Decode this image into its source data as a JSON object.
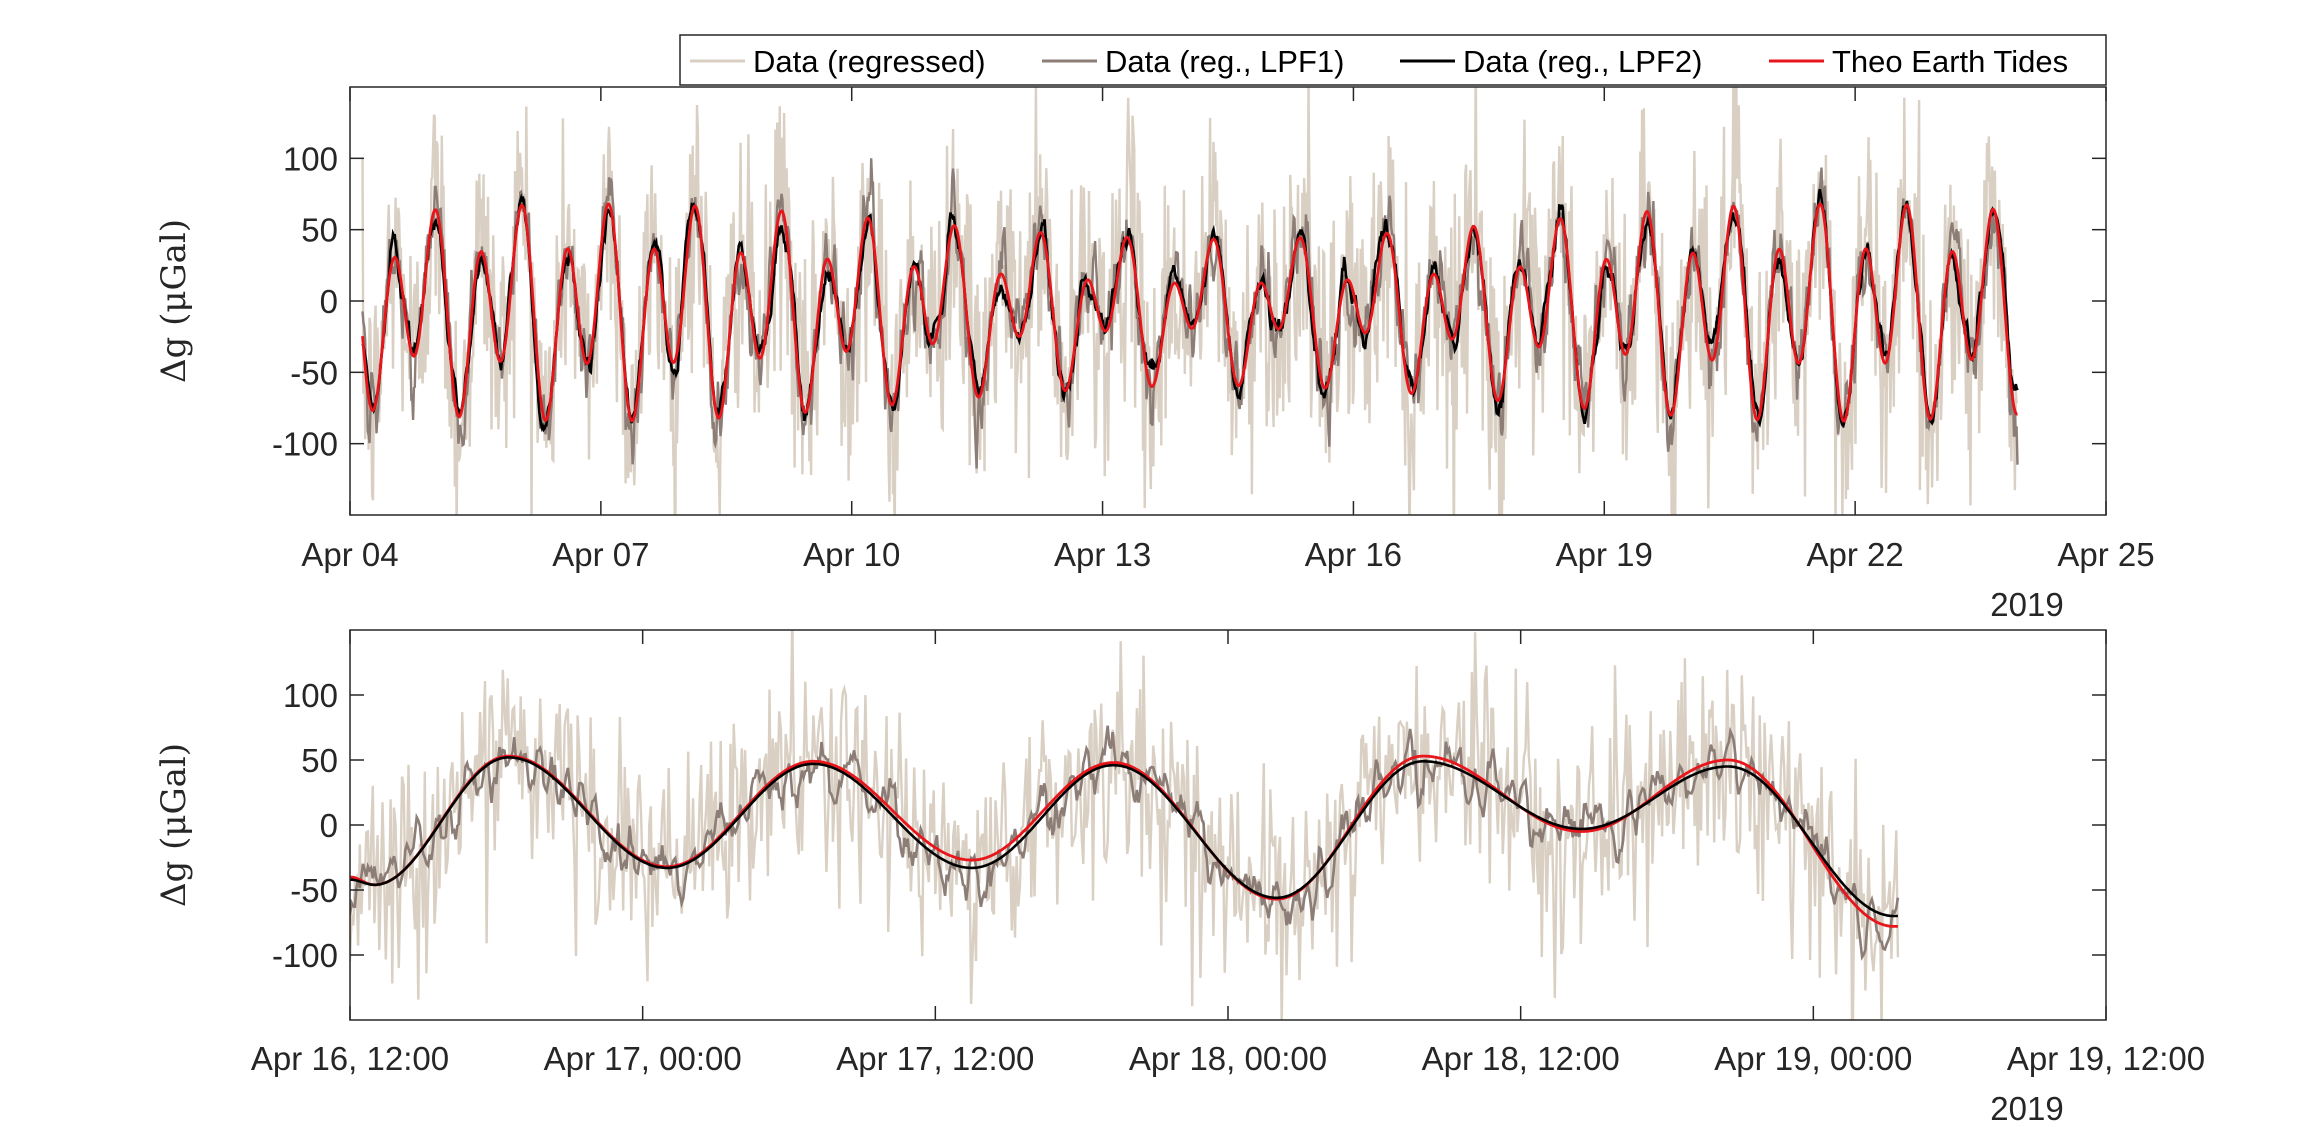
{
  "colors": {
    "regressed": "#d9cfc3",
    "lpf1": "#8c7d76",
    "lpf2": "#000000",
    "theo": "#e8151b",
    "axis": "#262626"
  },
  "chart_data": [
    {
      "type": "line",
      "title": "",
      "xlabel": "",
      "ylabel": "Δg (μGal)",
      "ylim": [
        -150,
        150
      ],
      "yticks": [
        -100,
        -50,
        0,
        50,
        100
      ],
      "yticklabels": [
        "-100",
        "-50",
        "0",
        "50",
        "100"
      ],
      "xlim_days": [
        0,
        21
      ],
      "xticklabels": [
        "Apr 04",
        "Apr 07",
        "Apr 10",
        "Apr 13",
        "Apr 16",
        "Apr 19",
        "Apr 22",
        "Apr 25"
      ],
      "xtick_positions_days": [
        0,
        3,
        6,
        9,
        12,
        15,
        18,
        21
      ],
      "xsecondary_label": "2019",
      "data_range_days": [
        0.15,
        19.95
      ],
      "theo_model": {
        "amplitude_ugal_approx": 80,
        "semidiurnal_period_hours": 12.42,
        "diurnal_period_hours": 24.84
      },
      "series": [
        {
          "name": "Data (regressed)",
          "style": "noisy raw",
          "noise_ugal_approx": 45
        },
        {
          "name": "Data (reg., LPF1)",
          "style": "low-pass 1",
          "noise_ugal_approx": 15
        },
        {
          "name": "Data (reg., LPF2)",
          "style": "low-pass 2",
          "noise_ugal_approx": 4
        },
        {
          "name": "Theo Earth Tides",
          "style": "model"
        }
      ]
    },
    {
      "type": "line",
      "title": "",
      "xlabel": "",
      "ylabel": "Δg (μGal)",
      "ylim": [
        -150,
        150
      ],
      "yticks": [
        -100,
        -50,
        0,
        50,
        100
      ],
      "yticklabels": [
        "-100",
        "-50",
        "0",
        "50",
        "100"
      ],
      "xlim_hours": [
        0,
        72
      ],
      "xticklabels": [
        "Apr 16, 12:00",
        "Apr 17, 00:00",
        "Apr 17, 12:00",
        "Apr 18, 00:00",
        "Apr 18, 12:00",
        "Apr 19, 00:00",
        "Apr 19, 12:00"
      ],
      "xtick_positions_hours": [
        0,
        12,
        24,
        36,
        48,
        60,
        72
      ],
      "xsecondary_label": "2019",
      "data_range_hours": [
        0.0,
        63.5
      ],
      "theo_keypoints": [
        {
          "hour": 0.0,
          "value": -40
        },
        {
          "hour": 1.0,
          "value": -46
        },
        {
          "hour": 6.5,
          "value": 53
        },
        {
          "hour": 13.0,
          "value": -32
        },
        {
          "hour": 19.0,
          "value": 49
        },
        {
          "hour": 25.5,
          "value": -27
        },
        {
          "hour": 31.3,
          "value": 48
        },
        {
          "hour": 38.0,
          "value": -57
        },
        {
          "hour": 44.0,
          "value": 53
        },
        {
          "hour": 50.5,
          "value": -5
        },
        {
          "hour": 56.5,
          "value": 50
        },
        {
          "hour": 63.3,
          "value": -78
        }
      ],
      "lpf2_keypoints": [
        {
          "hour": 0.0,
          "value": -42
        },
        {
          "hour": 1.0,
          "value": -46
        },
        {
          "hour": 6.5,
          "value": 52
        },
        {
          "hour": 13.0,
          "value": -33
        },
        {
          "hour": 19.0,
          "value": 47
        },
        {
          "hour": 25.5,
          "value": -33
        },
        {
          "hour": 31.3,
          "value": 46
        },
        {
          "hour": 38.0,
          "value": -56
        },
        {
          "hour": 44.0,
          "value": 49
        },
        {
          "hour": 50.5,
          "value": -3
        },
        {
          "hour": 56.5,
          "value": 45
        },
        {
          "hour": 63.3,
          "value": -70
        }
      ],
      "series": [
        {
          "name": "Data (regressed)",
          "style": "noisy raw",
          "noise_ugal_approx": 40
        },
        {
          "name": "Data (reg., LPF1)",
          "style": "low-pass 1",
          "noise_ugal_approx": 14
        },
        {
          "name": "Data (reg., LPF2)",
          "style": "low-pass 2"
        },
        {
          "name": "Theo Earth Tides",
          "style": "model"
        }
      ]
    }
  ],
  "legend": {
    "placement": "top-right",
    "entries": [
      "Data (regressed)",
      "Data (reg., LPF1)",
      "Data (reg., LPF2)",
      "Theo Earth Tides"
    ]
  }
}
